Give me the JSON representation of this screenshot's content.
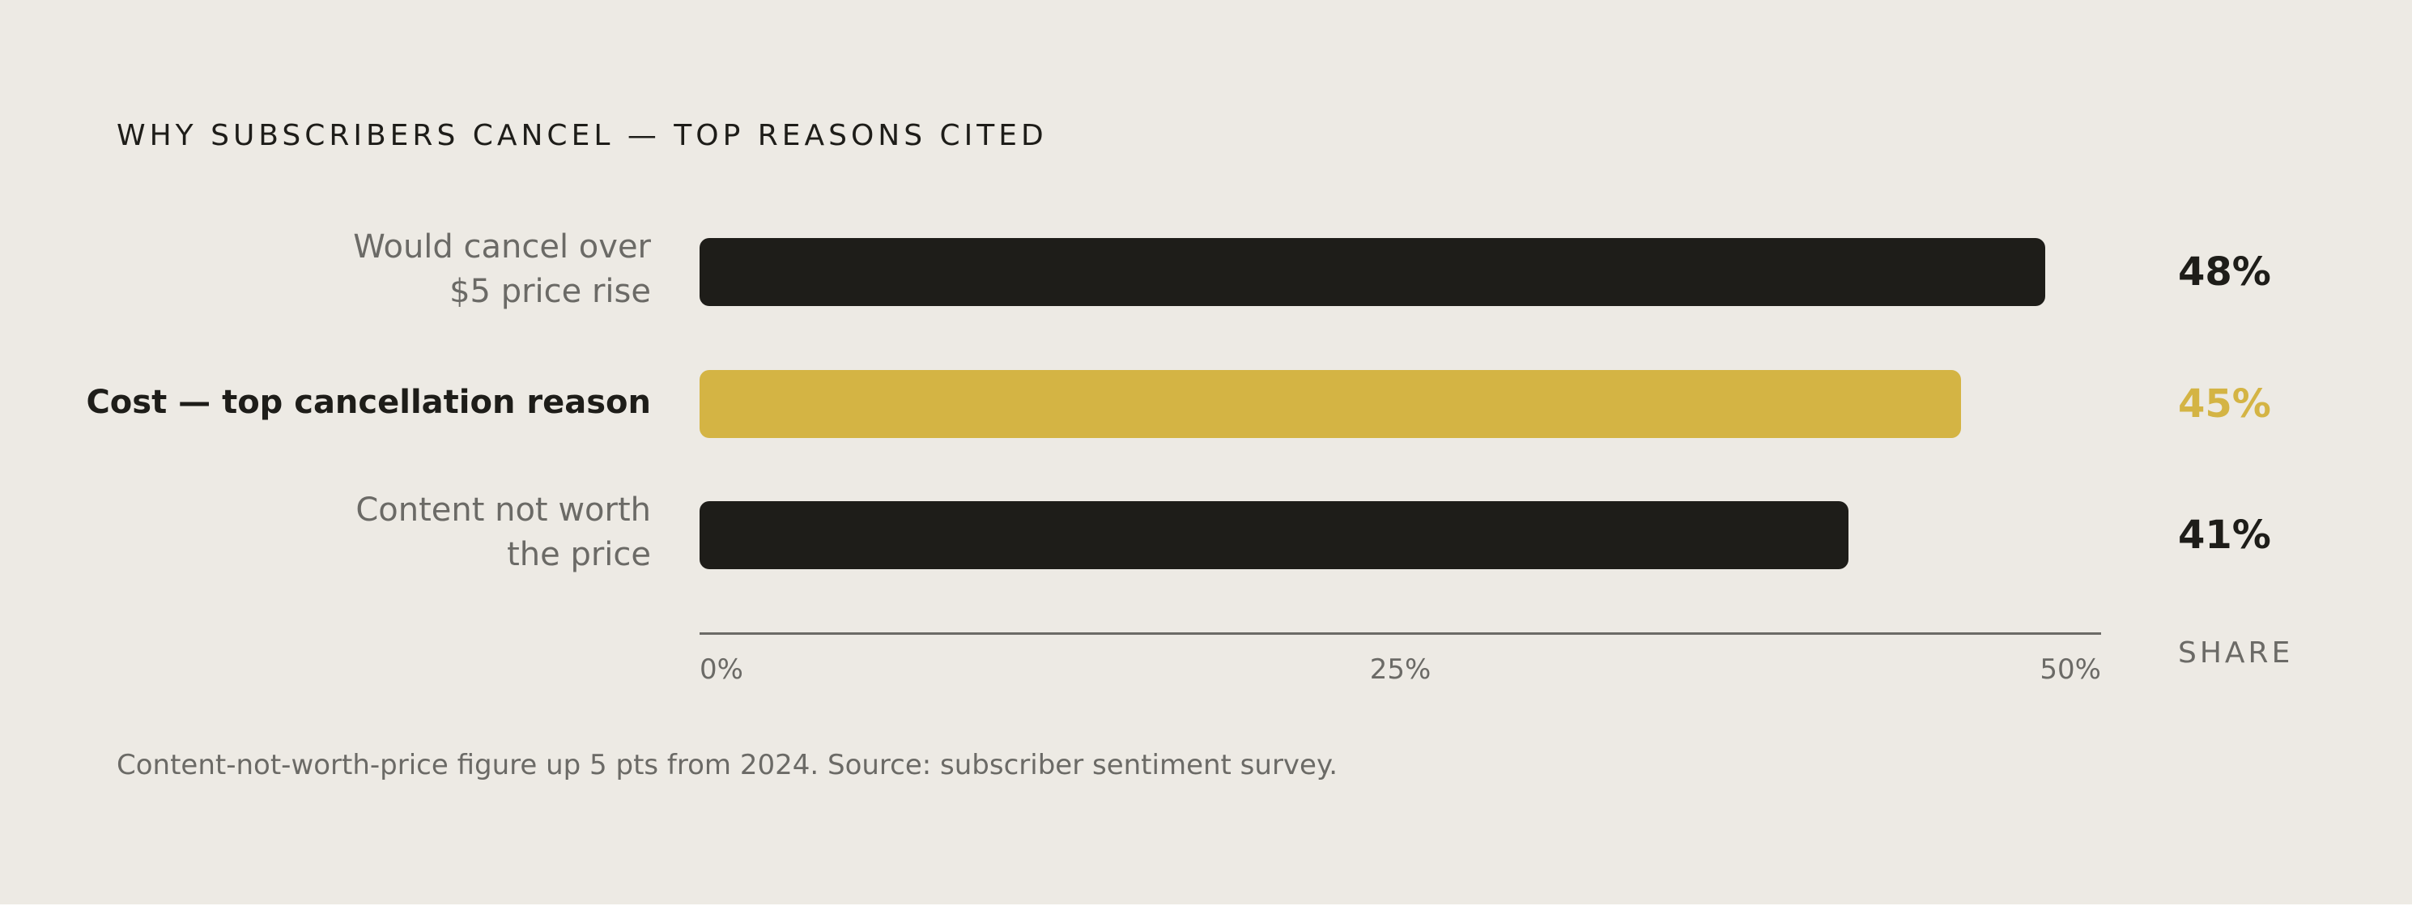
{
  "title": "WHY SUBSCRIBERS CANCEL — TOP REASONS CITED",
  "footnote": "Content-not-worth-price figure up 5 pts from 2024. Source: subscriber sentiment survey.",
  "colors": {
    "background": "#edeae4",
    "bar_default": "#1e1d19",
    "bar_highlight": "#d4b444",
    "muted_text": "#6b6a66"
  },
  "chart_data": {
    "type": "bar",
    "orientation": "horizontal",
    "categories": [
      "Would cancel over $5 price rise",
      "Cost — top cancellation reason",
      "Content not worth the price"
    ],
    "values": [
      48,
      45,
      41
    ],
    "value_labels": [
      "48%",
      "45%",
      "41%"
    ],
    "highlight_index": 1,
    "xlabel": "SHARE",
    "xlim": [
      0,
      50
    ],
    "xticks": [
      0,
      25,
      50
    ],
    "xtick_labels": [
      "0%",
      "25%",
      "50%"
    ],
    "grid": false,
    "legend": "none"
  },
  "rows": [
    {
      "label_lines": [
        "Would cancel over",
        "$5 price rise"
      ],
      "value_label": "48%"
    },
    {
      "label_lines": [
        "Cost — top cancellation reason"
      ],
      "value_label": "45%"
    },
    {
      "label_lines": [
        "Content not worth",
        "the price"
      ],
      "value_label": "41%"
    }
  ],
  "axis": {
    "tick_labels": [
      "0%",
      "25%",
      "50%"
    ],
    "title": "SHARE"
  }
}
